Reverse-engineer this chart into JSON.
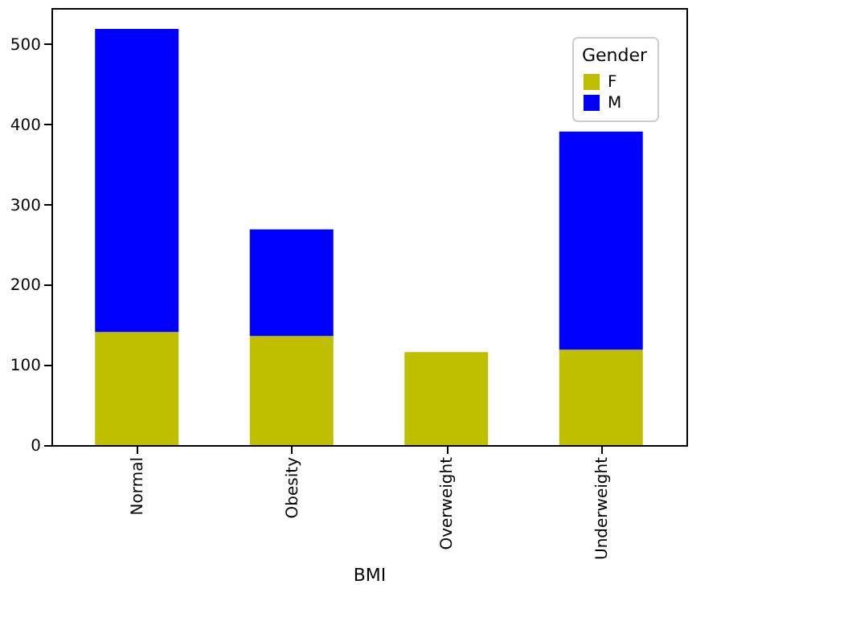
{
  "chart_data": {
    "type": "bar",
    "stacked": true,
    "xlabel": "BMI",
    "legend_title": "Gender",
    "legend": "top right",
    "grid": false,
    "categories": [
      "Normal",
      "Obesity",
      "Overweight",
      "Underweight"
    ],
    "series": [
      {
        "name": "F",
        "color": "#bfbf00",
        "values": [
          141,
          136,
          116,
          119
        ]
      },
      {
        "name": "M",
        "color": "#0000ff",
        "values": [
          378,
          133,
          null,
          272
        ]
      }
    ],
    "ylim": [
      0,
      545
    ],
    "yticks": [
      0,
      100,
      200,
      300,
      400,
      500
    ]
  }
}
